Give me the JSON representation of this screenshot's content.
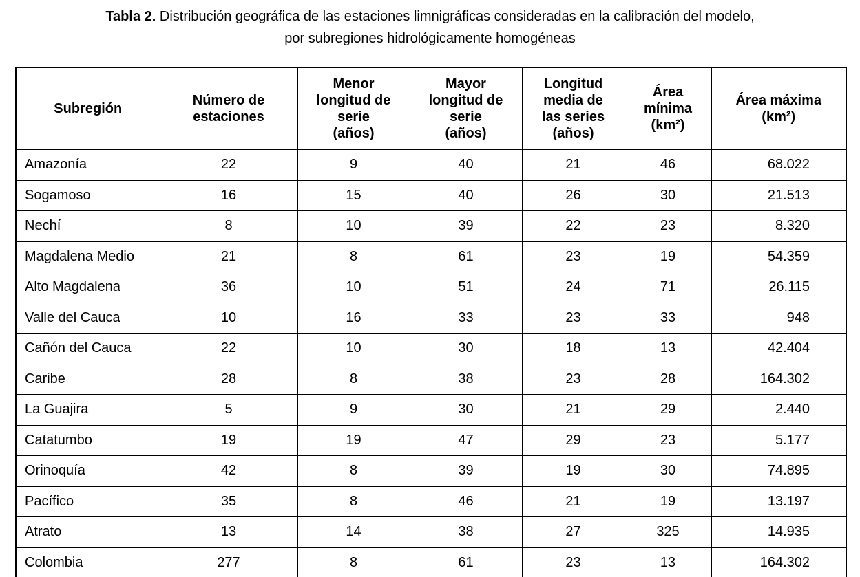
{
  "title": {
    "bold": "Tabla 2.",
    "line1_rest": "Distribución geográfica de las estaciones limnigráficas consideradas en la calibración del modelo,",
    "line2": "por subregiones hidrológicamente homogéneas"
  },
  "table": {
    "headers": [
      "Subregión",
      "Número de\nestaciones",
      "Menor\nlongitud de\nserie\n(años)",
      "Mayor\nlongitud de\nserie\n(años)",
      "Longitud\nmedia de\nlas series\n(años)",
      "Área\nmínima\n(km²)",
      "Área máxima\n(km²)"
    ],
    "rows": [
      {
        "cells": [
          "Amazonía",
          "22",
          "9",
          "40",
          "21",
          "46",
          "68.022"
        ]
      },
      {
        "cells": [
          "Sogamoso",
          "16",
          "15",
          "40",
          "26",
          "30",
          "21.513"
        ]
      },
      {
        "cells": [
          "Nechí",
          "8",
          "10",
          "39",
          "22",
          "23",
          "8.320"
        ]
      },
      {
        "cells": [
          "Magdalena Medio",
          "21",
          "8",
          "61",
          "23",
          "19",
          "54.359"
        ]
      },
      {
        "cells": [
          "Alto Magdalena",
          "36",
          "10",
          "51",
          "24",
          "71",
          "26.115"
        ]
      },
      {
        "cells": [
          "Valle del Cauca",
          "10",
          "16",
          "33",
          "23",
          "33",
          "948"
        ]
      },
      {
        "cells": [
          "Cañón del Cauca",
          "22",
          "10",
          "30",
          "18",
          "13",
          "42.404"
        ]
      },
      {
        "cells": [
          "Caribe",
          "28",
          "8",
          "38",
          "23",
          "28",
          "164.302"
        ]
      },
      {
        "cells": [
          "La Guajira",
          "5",
          "9",
          "30",
          "21",
          "29",
          "2.440"
        ]
      },
      {
        "cells": [
          "Catatumbo",
          "19",
          "19",
          "47",
          "29",
          "23",
          "5.177"
        ]
      },
      {
        "cells": [
          "Orinoquía",
          "42",
          "8",
          "39",
          "19",
          "30",
          "74.895"
        ]
      },
      {
        "cells": [
          "Pacífico",
          "35",
          "8",
          "46",
          "21",
          "19",
          "13.197"
        ]
      },
      {
        "cells": [
          "Atrato",
          "13",
          "14",
          "38",
          "27",
          "325",
          "14.935"
        ]
      },
      {
        "cells": [
          "Colombia",
          "277",
          "8",
          "61",
          "23",
          "13",
          "164.302"
        ]
      }
    ]
  },
  "colors": {
    "text": "#000000",
    "border": "#000000",
    "background": "#ffffff"
  }
}
